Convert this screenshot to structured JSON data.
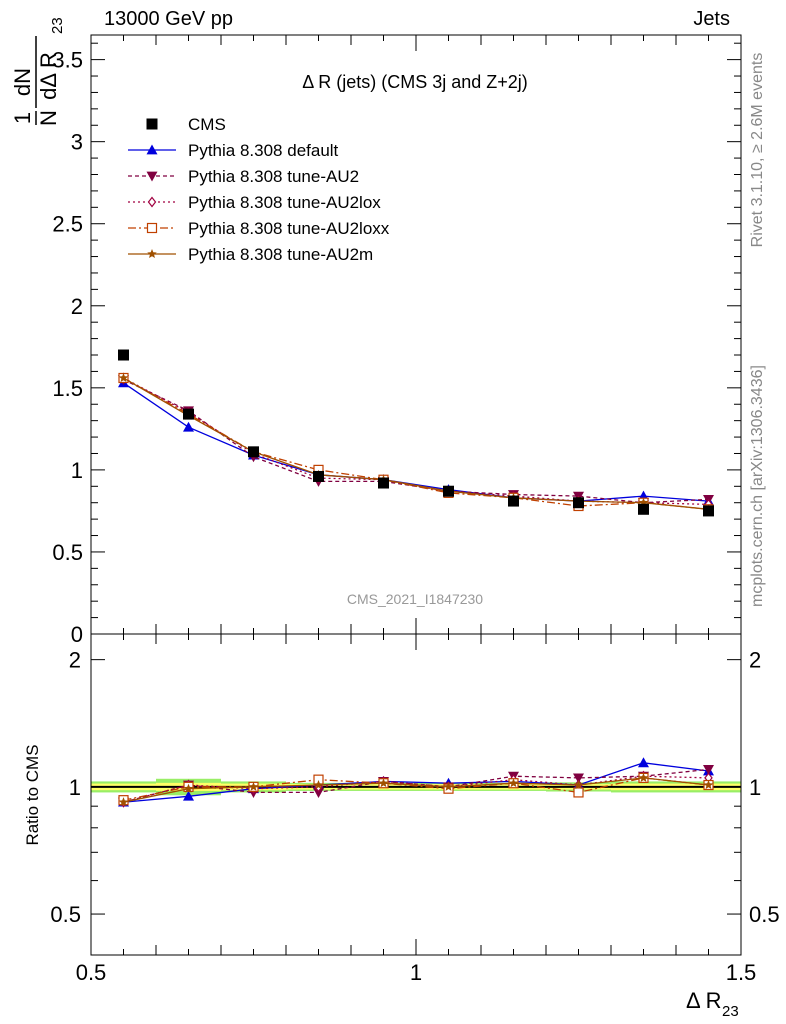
{
  "header": {
    "left": "13000 GeV pp",
    "right": "Jets"
  },
  "side_text": {
    "rivet": "Rivet 3.1.10, ≥ 2.6M events",
    "mcplots": "mcplots.cern.ch [arXiv:1306.3436]"
  },
  "chart_data": [
    {
      "type": "line",
      "panel": "main",
      "title": "Δ R (jets) (CMS 3j and Z+2j)",
      "watermark": "CMS_2021_I1847230",
      "ylabel_parts": {
        "frac1_num": "1",
        "frac1_den": "N",
        "frac2_num": "dN",
        "frac2_den": "dΔ R",
        "sub": "23"
      },
      "xlim": [
        0.5,
        1.5
      ],
      "ylim": [
        0,
        3.65
      ],
      "yticks": [
        0,
        0.5,
        1,
        1.5,
        2,
        2.5,
        3,
        3.5
      ],
      "ytick_labels": [
        "0",
        "0.5",
        "1",
        "1.5",
        "2",
        "2.5",
        "3",
        "3.5"
      ],
      "legend_position": "top-left",
      "x": [
        0.55,
        0.65,
        0.75,
        0.85,
        0.95,
        1.05,
        1.15,
        1.25,
        1.35,
        1.45
      ],
      "data_series": {
        "name": "CMS",
        "values": [
          1.7,
          1.34,
          1.11,
          0.96,
          0.92,
          0.87,
          0.81,
          0.8,
          0.76,
          0.75
        ],
        "errors": [
          0.02,
          0.02,
          0.02,
          0.01,
          0.01,
          0.01,
          0.01,
          0.01,
          0.01,
          0.01
        ]
      },
      "series": [
        {
          "name": "Pythia 8.308 default",
          "color": "#0000dd",
          "dash": "",
          "marker": "triangle-up-filled",
          "values": [
            1.53,
            1.26,
            1.09,
            0.97,
            0.94,
            0.88,
            0.83,
            0.81,
            0.84,
            0.81
          ]
        },
        {
          "name": "Pythia 8.308 tune-AU2",
          "color": "#800040",
          "dash": "4,3",
          "marker": "triangle-down-filled",
          "values": [
            1.55,
            1.36,
            1.08,
            0.93,
            0.93,
            0.87,
            0.85,
            0.84,
            0.8,
            0.82
          ]
        },
        {
          "name": "Pythia 8.308 tune-AU2lox",
          "color": "#a00040",
          "dash": "2,3",
          "marker": "diamond-open",
          "values": [
            1.56,
            1.35,
            1.1,
            0.95,
            0.94,
            0.87,
            0.84,
            0.81,
            0.8,
            0.79
          ]
        },
        {
          "name": "Pythia 8.308 tune-AU2loxx",
          "color": "#c04000",
          "dash": "8,3,2,3",
          "marker": "square-open",
          "values": [
            1.56,
            1.34,
            1.11,
            1.0,
            0.94,
            0.86,
            0.83,
            0.78,
            0.8,
            0.76
          ]
        },
        {
          "name": "Pythia 8.308 tune-AU2m",
          "color": "#a05000",
          "dash": "",
          "marker": "star-filled",
          "values": [
            1.56,
            1.33,
            1.11,
            0.97,
            0.94,
            0.87,
            0.83,
            0.81,
            0.8,
            0.76
          ]
        }
      ]
    },
    {
      "type": "line",
      "panel": "ratio",
      "ylabel": "Ratio to CMS",
      "xlabel_parts": {
        "main": "Δ R",
        "sub": "23"
      },
      "scale": "log",
      "xlim": [
        0.5,
        1.5
      ],
      "ylim": [
        0.4,
        2.3
      ],
      "xticks": [
        0.5,
        1,
        1.5
      ],
      "xtick_labels": [
        "0.5",
        "1",
        "1.5"
      ],
      "yticks": [
        0.5,
        1,
        2
      ],
      "ytick_labels": [
        "0.5",
        "1",
        "2"
      ],
      "band_inner_color": "#ffff66",
      "band_outer_color": "#99ee66",
      "band_inner": [
        0.018,
        0.022,
        0.018,
        0.015,
        0.015,
        0.015,
        0.015,
        0.015,
        0.018,
        0.018
      ],
      "band_outer": [
        0.03,
        0.045,
        0.03,
        0.022,
        0.022,
        0.022,
        0.022,
        0.025,
        0.03,
        0.03
      ],
      "series": [
        {
          "name": "Pythia 8.308 default",
          "values": [
            0.92,
            0.95,
            0.99,
            1.01,
            1.03,
            1.02,
            1.03,
            1.01,
            1.14,
            1.09
          ]
        },
        {
          "name": "Pythia 8.308 tune-AU2",
          "values": [
            0.92,
            1.01,
            0.97,
            0.97,
            1.03,
            1.0,
            1.06,
            1.05,
            1.06,
            1.1
          ]
        },
        {
          "name": "Pythia 8.308 tune-AU2lox",
          "values": [
            0.92,
            1.01,
            0.99,
            1.0,
            1.03,
            1.0,
            1.04,
            1.01,
            1.06,
            1.05
          ]
        },
        {
          "name": "Pythia 8.308 tune-AU2loxx",
          "values": [
            0.93,
            1.0,
            1.0,
            1.04,
            1.02,
            0.99,
            1.02,
            0.97,
            1.05,
            1.01
          ]
        },
        {
          "name": "Pythia 8.308 tune-AU2m",
          "values": [
            0.92,
            0.99,
            1.0,
            1.01,
            1.02,
            1.0,
            1.02,
            1.01,
            1.05,
            1.01
          ]
        }
      ]
    }
  ]
}
